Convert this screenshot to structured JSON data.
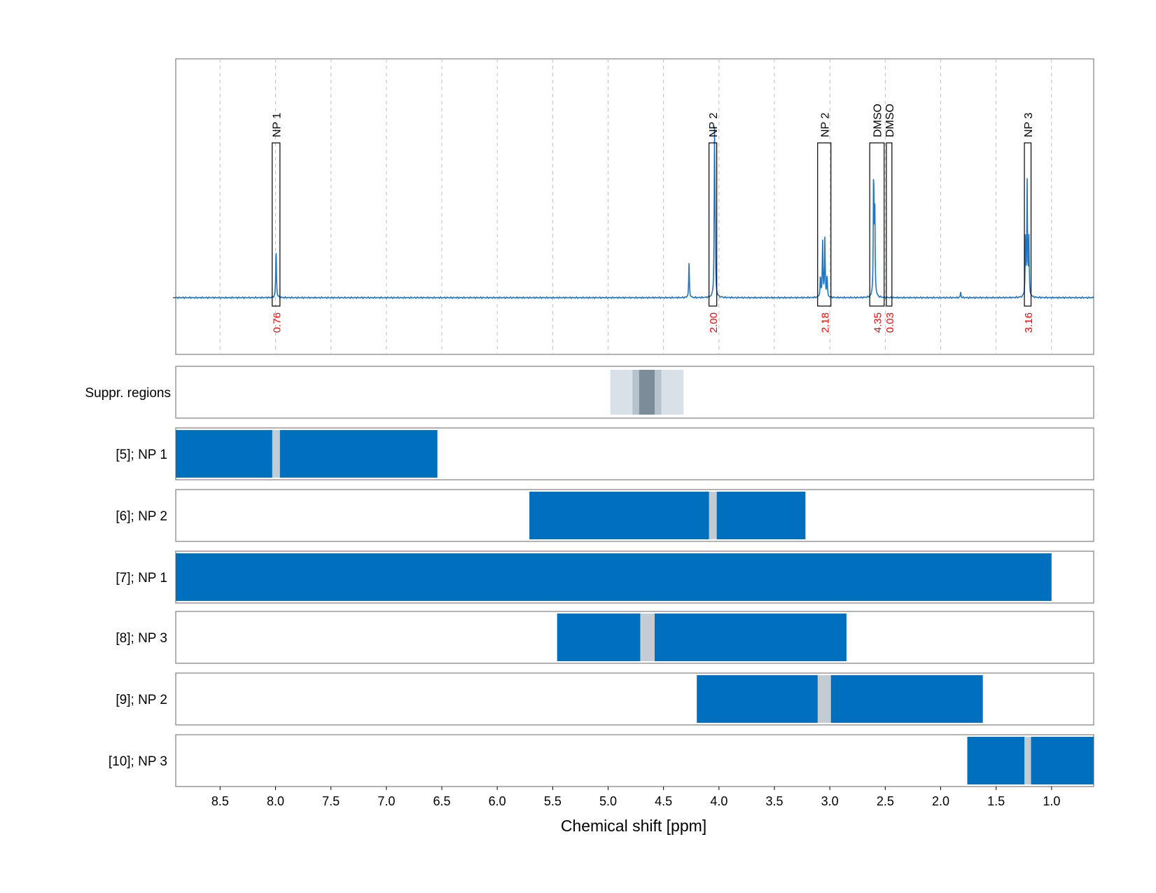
{
  "chart_data": {
    "type": "line",
    "xlabel": "Chemical shift [ppm]",
    "xlim": [
      8.9,
      0.62
    ],
    "x_ticks": [
      "8.5",
      "8.0",
      "7.5",
      "7.0",
      "6.5",
      "6.0",
      "5.5",
      "5.0",
      "4.5",
      "4.0",
      "3.5",
      "3.0",
      "2.5",
      "2.0",
      "1.5",
      "1.0"
    ],
    "x_tick_values": [
      8.5,
      8.0,
      7.5,
      7.0,
      6.5,
      6.0,
      5.5,
      5.0,
      4.5,
      4.0,
      3.5,
      3.0,
      2.5,
      2.0,
      1.5,
      1.0
    ],
    "grid": true,
    "spectrum": {
      "baseline": 0,
      "peaks": [
        {
          "x": 7.995,
          "height": 0.28
        },
        {
          "x": 4.27,
          "height": 0.19
        },
        {
          "x": 4.04,
          "height": 0.84
        },
        {
          "x": 4.035,
          "height": 0.3
        },
        {
          "x": 3.065,
          "height": 0.32
        },
        {
          "x": 3.045,
          "height": 0.32
        },
        {
          "x": 3.085,
          "height": 0.12
        },
        {
          "x": 3.025,
          "height": 0.12
        },
        {
          "x": 2.605,
          "height": 0.69
        },
        {
          "x": 2.595,
          "height": 0.52
        },
        {
          "x": 1.82,
          "height": 0.03
        },
        {
          "x": 1.22,
          "height": 0.62
        },
        {
          "x": 1.205,
          "height": 0.33
        },
        {
          "x": 1.235,
          "height": 0.33
        }
      ]
    },
    "annotations": [
      {
        "label": "NP 1",
        "integral": "0.76",
        "x_from": 8.03,
        "x_to": 7.96
      },
      {
        "label": "NP 2",
        "integral": "2.00",
        "x_from": 4.09,
        "x_to": 4.02
      },
      {
        "label": "NP 2",
        "integral": "2.18",
        "x_from": 3.11,
        "x_to": 2.99
      },
      {
        "label": "DMSO",
        "integral": "4.35",
        "x_from": 2.64,
        "x_to": 2.51
      },
      {
        "label": "DMSO",
        "integral": "0.03",
        "x_from": 2.49,
        "x_to": 2.44
      },
      {
        "label": "NP 3",
        "integral": "3.16",
        "x_from": 1.245,
        "x_to": 1.185
      }
    ],
    "suppression": {
      "label": "Suppr. regions",
      "bands": [
        {
          "x_from": 4.98,
          "x_to": 4.32,
          "shade": "#d9e1e8"
        },
        {
          "x_from": 4.78,
          "x_to": 4.52,
          "shade": "#b6c2cc"
        },
        {
          "x_from": 4.72,
          "x_to": 4.58,
          "shade": "#7c8c98"
        }
      ]
    },
    "rows": [
      {
        "label": "[5]; NP 1",
        "x_from": 8.9,
        "x_to": 6.54,
        "gap_from": 8.03,
        "gap_to": 7.96
      },
      {
        "label": "[6]; NP 2",
        "x_from": 5.71,
        "x_to": 3.22,
        "gap_from": 4.09,
        "gap_to": 4.02
      },
      {
        "label": "[7]; NP 1",
        "x_from": 8.9,
        "x_to": 1.0,
        "gap_from": null,
        "gap_to": null
      },
      {
        "label": "[8]; NP 3",
        "x_from": 5.46,
        "x_to": 2.85,
        "gap_from": 4.71,
        "gap_to": 4.58
      },
      {
        "label": "[9]; NP 2",
        "x_from": 4.2,
        "x_to": 1.62,
        "gap_from": 3.11,
        "gap_to": 2.99
      },
      {
        "label": "[10]; NP 3",
        "x_from": 1.76,
        "x_to": 0.62,
        "gap_from": 1.245,
        "gap_to": 1.185
      }
    ]
  },
  "colors": {
    "spectrum": "#1f77c4",
    "bar": "#006fbd",
    "gap": "#c3ccd3",
    "integral": "#ff0000",
    "frame": "#808080",
    "grid": "#bfbfbf"
  }
}
